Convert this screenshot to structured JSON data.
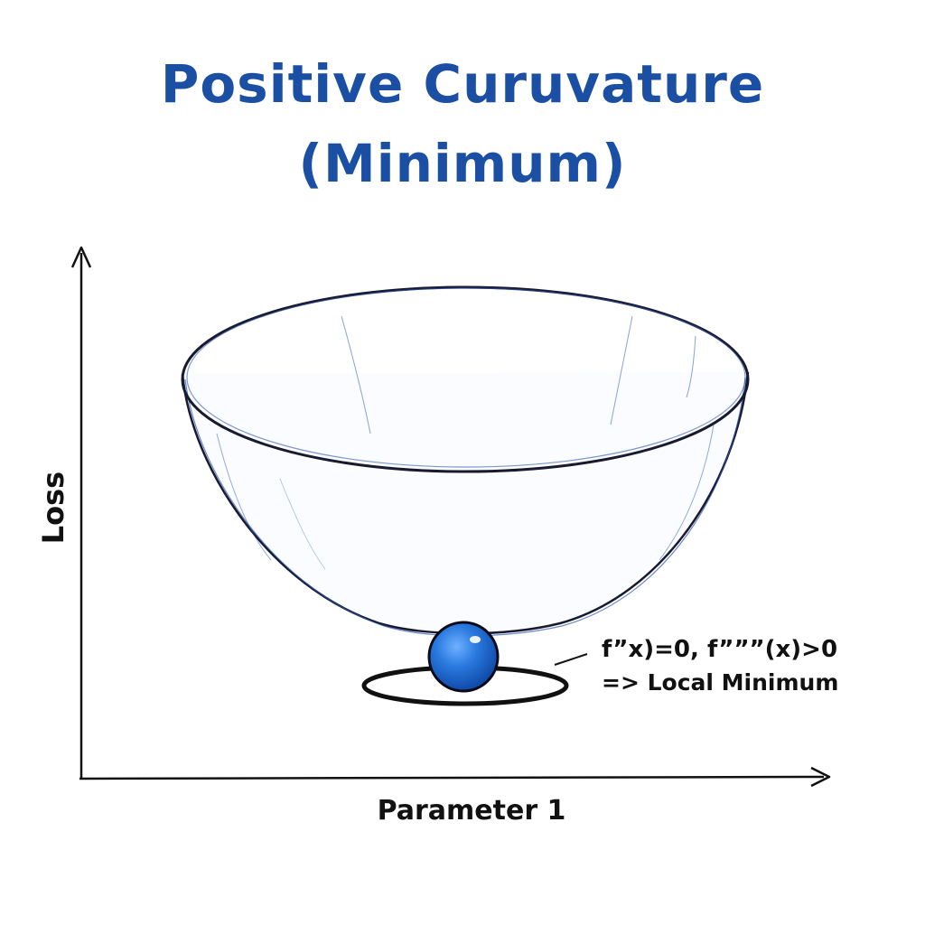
{
  "title": {
    "line1": "Positive Curuvature",
    "line2": "(Minimum)"
  },
  "axes": {
    "y_label": "Loss",
    "x_label": "Parameter 1"
  },
  "annotation": {
    "condition": "f”x)=0, f”””(x)>0",
    "conclusion": "=> Local Minimum"
  },
  "colors": {
    "title": "#1a4fa3",
    "ball": "#1f6fd6",
    "bowl_outline": "#1a1a2e",
    "bowl_sketch": "#2a55b8"
  }
}
